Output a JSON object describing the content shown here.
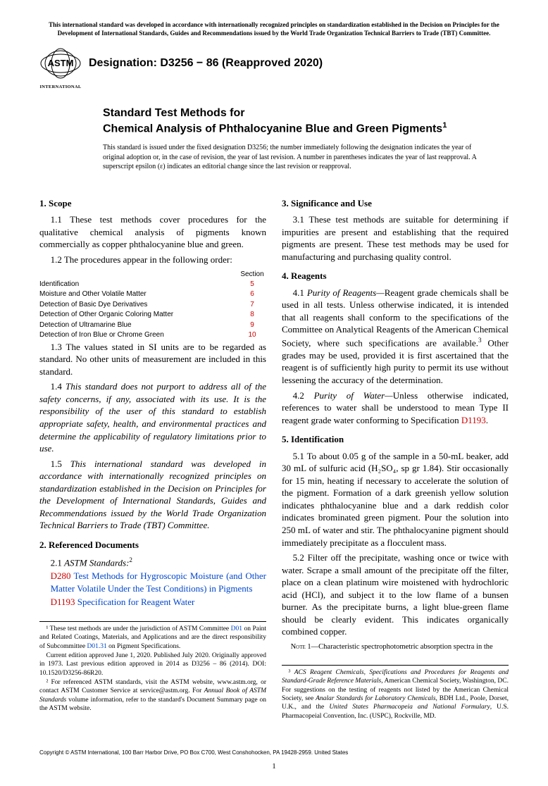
{
  "colors": {
    "link_red": "#cc0000",
    "link_blue": "#0046cc",
    "text": "#000000",
    "bg": "#ffffff"
  },
  "topNote": "This international standard was developed in accordance with internationally recognized principles on standardization established in the Decision on Principles for the Development of International Standards, Guides and Recommendations issued by the World Trade Organization Technical Barriers to Trade (TBT) Committee.",
  "logoLabel": "INTERNATIONAL",
  "designation": "Designation: D3256 − 86 (Reapproved 2020)",
  "titleIntro": "Standard Test Methods for",
  "titleMain": "Chemical Analysis of Phthalocyanine Blue and Green Pigments",
  "issuanceNote": "This standard is issued under the fixed designation D3256; the number immediately following the designation indicates the year of original adoption or, in the case of revision, the year of last revision. A number in parentheses indicates the year of last reapproval. A superscript epsilon (ε) indicates an editorial change since the last revision or reapproval.",
  "sections": {
    "s1": "1. Scope",
    "s1_1": "1.1 These test methods cover procedures for the qualitative chemical analysis of pigments known commercially as copper phthalocyanine blue and green.",
    "s1_2": "1.2 The procedures appear in the following order:",
    "procTableHeader": "Section",
    "procTable": [
      {
        "label": "Identification",
        "sec": "5"
      },
      {
        "label": "Moisture and Other Volatile Matter",
        "sec": "6"
      },
      {
        "label": "Detection of Basic Dye Derivatives",
        "sec": "7"
      },
      {
        "label": "Detection of Other Organic Coloring Matter",
        "sec": "8"
      },
      {
        "label": "Detection of Ultramarine Blue",
        "sec": "9"
      },
      {
        "label": "Detection of Iron Blue or Chrome Green",
        "sec": "10"
      }
    ],
    "s1_3": "1.3 The values stated in SI units are to be regarded as standard. No other units of measurement are included in this standard.",
    "s1_4": "1.4 This standard does not purport to address all of the safety concerns, if any, associated with its use. It is the responsibility of the user of this standard to establish appropriate safety, health, and environmental practices and determine the applicability of regulatory limitations prior to use.",
    "s1_5": "1.5 This international standard was developed in accordance with internationally recognized principles on standardization established in the Decision on Principles for the Development of International Standards, Guides and Recommendations issued by the World Trade Organization Technical Barriers to Trade (TBT) Committee.",
    "s2": "2. Referenced Documents",
    "s2_1_lead": "2.1 ",
    "s2_1_ital": "ASTM Standards:",
    "ref1_code": "D280",
    "ref1_text": " Test Methods for Hygroscopic Moisture (and Other Matter Volatile Under the Test Conditions) in Pigments",
    "ref2_code": "D1193",
    "ref2_text": " Specification for Reagent Water",
    "s3": "3. Significance and Use",
    "s3_1": "3.1 These test methods are suitable for determining if impurities are present and establishing that the required pigments are present. These test methods may be used for manufacturing and purchasing quality control.",
    "s4": "4. Reagents",
    "s4_1_lead": "4.1 ",
    "s4_1_ital": "Purity of Reagents—",
    "s4_1_body": "Reagent grade chemicals shall be used in all tests. Unless otherwise indicated, it is intended that all reagents shall conform to the specifications of the Committee on Analytical Reagents of the American Chemical Society, where such specifications are available.",
    "s4_1_tail": " Other grades may be used, provided it is first ascertained that the reagent is of sufficiently high purity to permit its use without lessening the accuracy of the determination.",
    "s4_2_lead": "4.2 ",
    "s4_2_ital": "Purity of Water—",
    "s4_2_body": "Unless otherwise indicated, references to water shall be understood to mean Type II reagent grade water conforming to Specification ",
    "s4_2_link": "D1193",
    "s4_2_tail": ".",
    "s5h": "5. Identification",
    "s5_1": "5.1 To about 0.05 g of the sample in a 50-mL beaker, add 30 mL of sulfuric acid (H₂SO₄, sp gr 1.84). Stir occasionally for 15 min, heating if necessary to accelerate the solution of the pigment. Formation of a dark greenish yellow solution indicates phthalocyanine blue and a dark reddish color indicates brominated green pigment. Pour the solution into 250 mL of water and stir. The phthalocyanine pigment should immediately precipitate as a flocculent mass.",
    "s5_2": "5.2 Filter off the precipitate, washing once or twice with water. Scrape a small amount of the precipitate off the filter, place on a clean platinum wire moistened with hydrochloric acid (HCl), and subject it to the low flame of a bunsen burner. As the precipitate burns, a light blue-green flame should be clearly evident. This indicates organically combined copper.",
    "note1_label": "Note 1—",
    "note1_body": "Characteristic spectrophotometric absorption spectra in the"
  },
  "footnotesLeft": {
    "f1a": "¹ These test methods are under the jurisdiction of ASTM Committee ",
    "f1link1": "D01",
    "f1b": " on Paint and Related Coatings, Materials, and Applications and are the direct responsibility of Subcommittee ",
    "f1link2": "D01.31",
    "f1c": " on Pigment Specifications.",
    "f1d": "Current edition approved June 1, 2020. Published July 2020. Originally approved in 1973. Last previous edition approved in 2014 as D3256 – 86 (2014). DOI: 10.1520/D3256-86R20.",
    "f2a": "² For referenced ASTM standards, visit the ASTM website, www.astm.org, or contact ASTM Customer Service at service@astm.org. For ",
    "f2ital": "Annual Book of ASTM Standards",
    "f2b": " volume information, refer to the standard's Document Summary page on the ASTM website."
  },
  "footnotesRight": {
    "f3a": "³ ",
    "f3ital1": "ACS Reagent Chemicals, Specifications and Procedures for Reagents and Standard-Grade Reference Materials",
    "f3b": ", American Chemical Society, Washington, DC. For suggestions on the testing of reagents not listed by the American Chemical Society, see ",
    "f3ital2": "Analar Standards for Laboratory Chemicals",
    "f3c": ", BDH Ltd., Poole, Dorset, U.K., and the ",
    "f3ital3": "United States Pharmacopeia and National Formulary",
    "f3d": ", U.S. Pharmacopeial Convention, Inc. (USPC), Rockville, MD."
  },
  "copyright": "Copyright © ASTM International, 100 Barr Harbor Drive, PO Box C700, West Conshohocken, PA 19428-2959. United States",
  "pageNumber": "1"
}
